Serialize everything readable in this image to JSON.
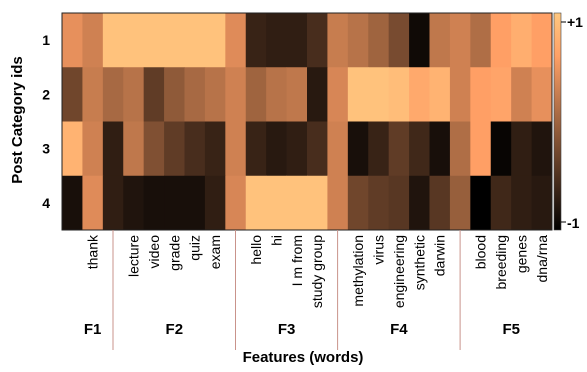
{
  "chart_data": {
    "type": "heatmap",
    "title": "",
    "xlabel": "Features (words)",
    "ylabel": "Post Category ids",
    "rows": [
      "1",
      "2",
      "3",
      "4"
    ],
    "columns": [
      "",
      "thank",
      "",
      "lecture",
      "video",
      "grade",
      "quiz",
      "exam",
      "",
      "hello",
      "hi",
      "I m from",
      "study group",
      "",
      "methylation",
      "virus",
      "engineering",
      "synthetic",
      "darwin",
      "",
      "blood",
      "breeding",
      "genes",
      "dna/rna"
    ],
    "values": [
      [
        0.45,
        0.3,
        0.95,
        0.95,
        0.95,
        0.95,
        0.95,
        0.95,
        0.4,
        -0.65,
        -0.7,
        -0.7,
        -0.55,
        0.25,
        0.15,
        0.0,
        -0.25,
        -0.9,
        0.2,
        0.3,
        0.1,
        0.6,
        0.75,
        0.6
      ],
      [
        -0.3,
        0.25,
        0.05,
        0.15,
        -0.4,
        -0.1,
        0.05,
        0.15,
        0.3,
        0.0,
        0.15,
        0.2,
        -0.75,
        0.35,
        0.95,
        0.95,
        0.9,
        0.7,
        0.8,
        0.3,
        0.6,
        0.65,
        0.3,
        0.45
      ],
      [
        0.8,
        0.3,
        -0.7,
        0.2,
        -0.2,
        -0.4,
        -0.55,
        -0.65,
        0.3,
        -0.65,
        -0.75,
        -0.7,
        -0.55,
        0.3,
        -0.85,
        -0.65,
        -0.4,
        -0.6,
        -0.85,
        0.1,
        0.6,
        -0.95,
        -0.7,
        -0.8
      ],
      [
        -0.85,
        0.4,
        -0.7,
        -0.8,
        -0.85,
        -0.85,
        -0.85,
        -0.7,
        0.35,
        0.95,
        0.95,
        0.95,
        0.95,
        0.3,
        -0.3,
        -0.4,
        -0.45,
        -0.8,
        -0.45,
        -0.05,
        -1.0,
        -0.6,
        -0.7,
        -0.75
      ]
    ],
    "color_range": [
      -1,
      1
    ],
    "colorbar_labels": [
      "+1",
      "-1"
    ],
    "groups": [
      {
        "label": "F1",
        "columns": [
          1
        ]
      },
      {
        "label": "F2",
        "columns": [
          3,
          4,
          5,
          6,
          7
        ]
      },
      {
        "label": "F3",
        "columns": [
          9,
          10,
          11,
          12
        ]
      },
      {
        "label": "F4",
        "columns": [
          14,
          15,
          16,
          17,
          18
        ]
      },
      {
        "label": "F5",
        "columns": [
          20,
          21,
          22,
          23
        ]
      }
    ],
    "colormap": "copper",
    "grid": false
  }
}
